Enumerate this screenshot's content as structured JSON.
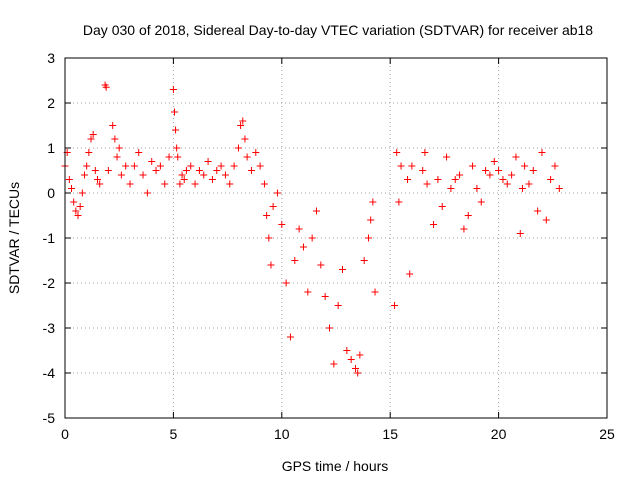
{
  "chart_data": {
    "type": "scatter",
    "title": "Day 030 of 2018, Sidereal Day-to-day VTEC variation (SDTVAR) for receiver ab18",
    "xlabel": "GPS time / hours",
    "ylabel": "SDTVAR / TECUs",
    "xlim": [
      0,
      25
    ],
    "ylim": [
      -5,
      3
    ],
    "xticks": [
      0,
      5,
      10,
      15,
      20,
      25
    ],
    "yticks": [
      -5,
      -4,
      -3,
      -2,
      -1,
      0,
      1,
      2,
      3
    ],
    "grid": true,
    "marker": "+",
    "color": "#ff0000",
    "series": [
      {
        "name": "SDTVAR",
        "x": [
          0.0,
          0.1,
          0.2,
          0.3,
          0.4,
          0.5,
          0.6,
          0.7,
          0.8,
          0.9,
          1.0,
          1.1,
          1.2,
          1.3,
          1.4,
          1.5,
          1.6,
          1.85,
          1.9,
          2.0,
          2.2,
          2.3,
          2.4,
          2.5,
          2.6,
          2.8,
          3.0,
          3.2,
          3.4,
          3.6,
          3.8,
          4.0,
          4.2,
          4.4,
          4.6,
          4.8,
          5.0,
          5.05,
          5.1,
          5.15,
          5.2,
          5.3,
          5.4,
          5.5,
          5.6,
          5.8,
          6.0,
          6.2,
          6.4,
          6.6,
          6.8,
          7.0,
          7.2,
          7.4,
          7.6,
          7.8,
          8.0,
          8.1,
          8.2,
          8.3,
          8.4,
          8.6,
          8.8,
          9.0,
          9.2,
          9.3,
          9.4,
          9.5,
          9.6,
          9.8,
          10.0,
          10.2,
          10.4,
          10.6,
          10.8,
          11.0,
          11.2,
          11.4,
          11.6,
          11.8,
          12.0,
          12.2,
          12.4,
          12.6,
          12.8,
          13.0,
          13.2,
          13.4,
          13.5,
          13.6,
          13.8,
          14.0,
          14.1,
          14.2,
          14.3,
          15.2,
          15.3,
          15.4,
          15.5,
          15.8,
          15.9,
          16.0,
          16.5,
          16.6,
          16.7,
          17.0,
          17.2,
          17.4,
          17.6,
          17.8,
          18.0,
          18.2,
          18.4,
          18.6,
          18.8,
          19.0,
          19.2,
          19.4,
          19.6,
          19.8,
          20.0,
          20.2,
          20.4,
          20.6,
          20.8,
          21.0,
          21.1,
          21.2,
          21.4,
          21.6,
          21.8,
          22.0,
          22.2,
          22.4,
          22.6,
          22.8
        ],
        "y": [
          0.6,
          0.9,
          0.3,
          0.1,
          -0.2,
          -0.4,
          -0.5,
          -0.3,
          0.0,
          0.4,
          0.6,
          0.9,
          1.2,
          1.3,
          0.5,
          0.3,
          0.2,
          2.4,
          2.35,
          0.5,
          1.5,
          1.2,
          0.8,
          1.0,
          0.4,
          0.6,
          0.2,
          0.6,
          0.9,
          0.4,
          0.0,
          0.7,
          0.5,
          0.6,
          0.2,
          0.8,
          2.3,
          1.8,
          1.4,
          1.0,
          0.8,
          0.2,
          0.4,
          0.3,
          0.5,
          0.6,
          0.2,
          0.5,
          0.4,
          0.7,
          0.3,
          0.5,
          0.6,
          0.4,
          0.2,
          0.6,
          1.0,
          1.5,
          1.6,
          1.2,
          0.8,
          0.5,
          0.9,
          0.6,
          0.2,
          -0.5,
          -1.0,
          -1.6,
          -0.3,
          0.0,
          -0.7,
          -2.0,
          -3.2,
          -1.5,
          -0.8,
          -1.2,
          -2.2,
          -1.0,
          -0.4,
          -1.6,
          -2.3,
          -3.0,
          -3.8,
          -2.5,
          -1.7,
          -3.5,
          -3.7,
          -3.9,
          -4.0,
          -3.6,
          -1.5,
          -1.0,
          -0.6,
          -0.2,
          -2.2,
          -2.5,
          0.9,
          -0.2,
          0.6,
          0.3,
          -1.8,
          0.6,
          0.5,
          0.9,
          0.2,
          -0.7,
          0.3,
          -0.3,
          0.8,
          0.1,
          0.3,
          0.4,
          -0.8,
          -0.5,
          0.6,
          0.1,
          -0.2,
          0.5,
          0.4,
          0.7,
          0.5,
          0.3,
          0.2,
          0.4,
          0.8,
          -0.9,
          0.1,
          0.6,
          0.2,
          0.5,
          -0.4,
          0.9,
          -0.6,
          0.3,
          0.6,
          0.1
        ]
      }
    ]
  }
}
